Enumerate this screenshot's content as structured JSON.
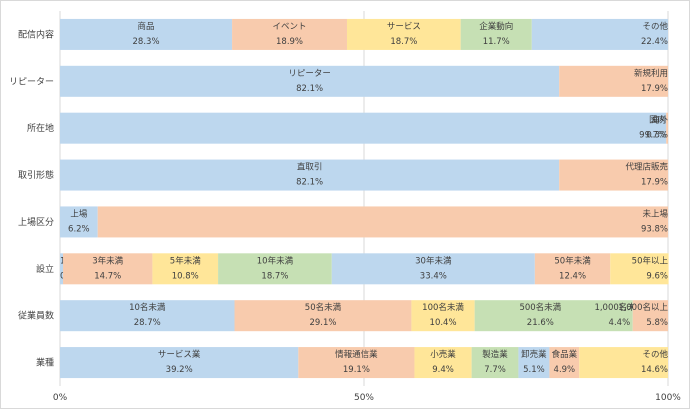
{
  "chart_data": {
    "type": "bar",
    "orientation": "horizontal",
    "stacked": "percent",
    "xlim": [
      0,
      100
    ],
    "x_ticks": [
      "0%",
      "50%",
      "100%"
    ],
    "grid": true,
    "rows": [
      {
        "label": "配信内容",
        "segments": [
          {
            "name": "商品",
            "value": 28.3,
            "text": "28.3%",
            "color": "#bdd7ee"
          },
          {
            "name": "イベント",
            "value": 18.9,
            "text": "18.9%",
            "color": "#f8cbad"
          },
          {
            "name": "サービス",
            "value": 18.7,
            "text": "18.7%",
            "color": "#ffe699"
          },
          {
            "name": "企業動向",
            "value": 11.7,
            "text": "11.7%",
            "color": "#c6e0b4"
          },
          {
            "name": "その他",
            "value": 22.4,
            "text": "22.4%",
            "color": "#bdd7ee"
          }
        ]
      },
      {
        "label": "リピーター",
        "segments": [
          {
            "name": "リピーター",
            "value": 82.1,
            "text": "82.1%",
            "color": "#bdd7ee"
          },
          {
            "name": "新規利用",
            "value": 17.9,
            "text": "17.9%",
            "color": "#f8cbad"
          }
        ]
      },
      {
        "label": "所在地",
        "segments": [
          {
            "name": "国内",
            "value": 99.7,
            "text": "99.7%",
            "color": "#bdd7ee"
          },
          {
            "name": "海外",
            "value": 0.3,
            "text": "0.3%",
            "color": "#f8cbad"
          }
        ]
      },
      {
        "label": "取引形態",
        "segments": [
          {
            "name": "直取引",
            "value": 82.1,
            "text": "82.1%",
            "color": "#bdd7ee"
          },
          {
            "name": "代理店販売",
            "value": 17.9,
            "text": "17.9%",
            "color": "#f8cbad"
          }
        ]
      },
      {
        "label": "上場区分",
        "segments": [
          {
            "name": "上場",
            "value": 6.2,
            "text": "6.2%",
            "color": "#bdd7ee"
          },
          {
            "name": "未上場",
            "value": 93.8,
            "text": "93.8%",
            "color": "#f8cbad"
          }
        ]
      },
      {
        "label": "設立",
        "segments": [
          {
            "name": "1年未満",
            "value": 0.5,
            "text": "0.5%",
            "color": "#bdd7ee"
          },
          {
            "name": "3年未満",
            "value": 14.7,
            "text": "14.7%",
            "color": "#f8cbad"
          },
          {
            "name": "5年未満",
            "value": 10.8,
            "text": "10.8%",
            "color": "#ffe699"
          },
          {
            "name": "10年未満",
            "value": 18.7,
            "text": "18.7%",
            "color": "#c6e0b4"
          },
          {
            "name": "30年未満",
            "value": 33.4,
            "text": "33.4%",
            "color": "#bdd7ee"
          },
          {
            "name": "50年未満",
            "value": 12.4,
            "text": "12.4%",
            "color": "#f8cbad"
          },
          {
            "name": "50年以上",
            "value": 9.6,
            "text": "9.6%",
            "color": "#ffe699"
          }
        ]
      },
      {
        "label": "従業員数",
        "segments": [
          {
            "name": "10名未満",
            "value": 28.7,
            "text": "28.7%",
            "color": "#bdd7ee"
          },
          {
            "name": "50名未満",
            "value": 29.1,
            "text": "29.1%",
            "color": "#f8cbad"
          },
          {
            "name": "100名未満",
            "value": 10.4,
            "text": "10.4%",
            "color": "#ffe699"
          },
          {
            "name": "500名未満",
            "value": 21.6,
            "text": "21.6%",
            "color": "#c6e0b4"
          },
          {
            "name": "1,000名未満",
            "value": 4.4,
            "text": "4.4%",
            "color": "#c6e0b4"
          },
          {
            "name": "1,000名以上",
            "value": 5.8,
            "text": "5.8%",
            "color": "#f8cbad"
          }
        ]
      },
      {
        "label": "業種",
        "segments": [
          {
            "name": "サービス業",
            "value": 39.2,
            "text": "39.2%",
            "color": "#bdd7ee"
          },
          {
            "name": "情報通信業",
            "value": 19.1,
            "text": "19.1%",
            "color": "#f8cbad"
          },
          {
            "name": "小売業",
            "value": 9.4,
            "text": "9.4%",
            "color": "#ffe699"
          },
          {
            "name": "製造業",
            "value": 7.7,
            "text": "7.7%",
            "color": "#c6e0b4"
          },
          {
            "name": "卸売業",
            "value": 5.1,
            "text": "5.1%",
            "color": "#bdd7ee"
          },
          {
            "name": "食品業",
            "value": 4.9,
            "text": "4.9%",
            "color": "#f8cbad"
          },
          {
            "name": "その他",
            "value": 14.6,
            "text": "14.6%",
            "color": "#ffe699"
          }
        ]
      }
    ]
  }
}
